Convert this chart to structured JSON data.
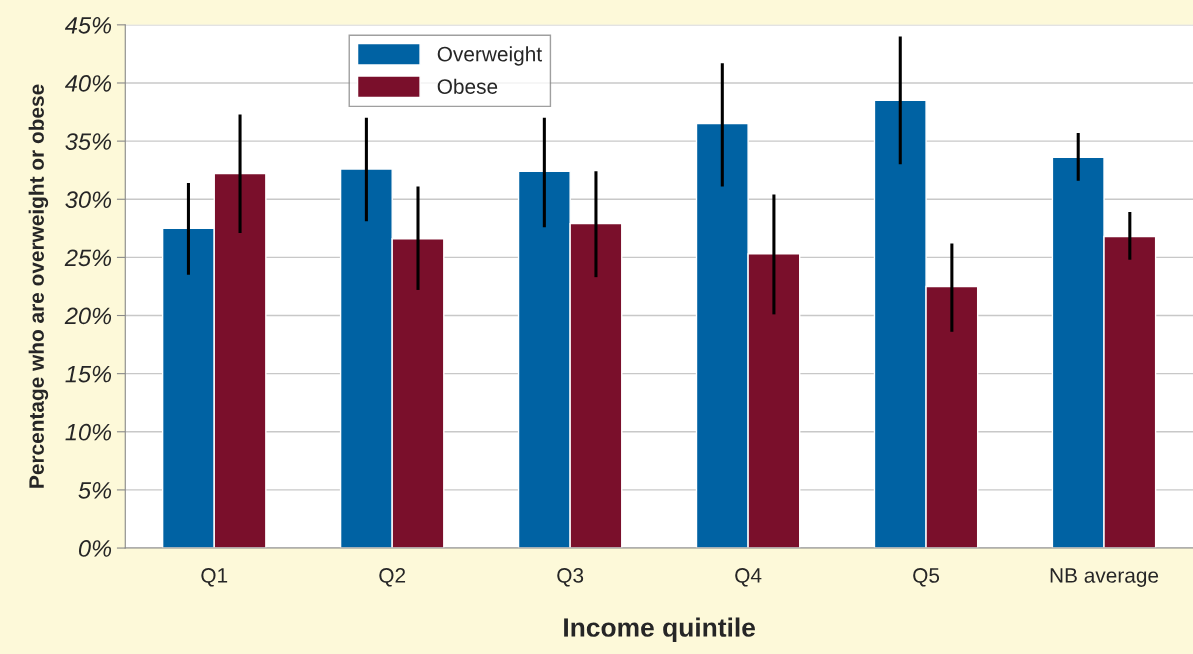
{
  "chart_data": {
    "type": "bar",
    "xlabel": "Income quintile",
    "ylabel": "Percentage who are overweight or obese",
    "categories": [
      "Q1",
      "Q2",
      "Q3",
      "Q4",
      "Q5",
      "NB average"
    ],
    "series": [
      {
        "name": "Overweight",
        "color": "#0062a3",
        "values": [
          27.5,
          32.6,
          32.4,
          36.5,
          38.5,
          33.6
        ],
        "errors": [
          [
            23.5,
            31.4
          ],
          [
            28.1,
            37.0
          ],
          [
            27.6,
            37.0
          ],
          [
            31.1,
            41.7
          ],
          [
            33.0,
            44.0
          ],
          [
            31.6,
            35.7
          ]
        ]
      },
      {
        "name": "Obese",
        "color": "#7a0f2b",
        "values": [
          32.2,
          26.6,
          27.9,
          25.3,
          22.5,
          26.8
        ],
        "errors": [
          [
            27.1,
            37.3
          ],
          [
            22.2,
            31.1
          ],
          [
            23.3,
            32.4
          ],
          [
            20.1,
            30.4
          ],
          [
            18.6,
            26.2
          ],
          [
            24.8,
            28.9
          ]
        ]
      }
    ],
    "ylim": [
      0,
      45
    ],
    "yticks": [
      {
        "value": 0,
        "label": "0%"
      },
      {
        "value": 5,
        "label": "5%"
      },
      {
        "value": 10,
        "label": "10%"
      },
      {
        "value": 15,
        "label": "15%"
      },
      {
        "value": 20,
        "label": "20%"
      },
      {
        "value": 25,
        "label": "25%"
      },
      {
        "value": 30,
        "label": "30%"
      },
      {
        "value": 35,
        "label": "35%"
      },
      {
        "value": 40,
        "label": "40%"
      },
      {
        "value": 45,
        "label": "45%"
      }
    ],
    "grid": "y",
    "legend": "top left"
  }
}
